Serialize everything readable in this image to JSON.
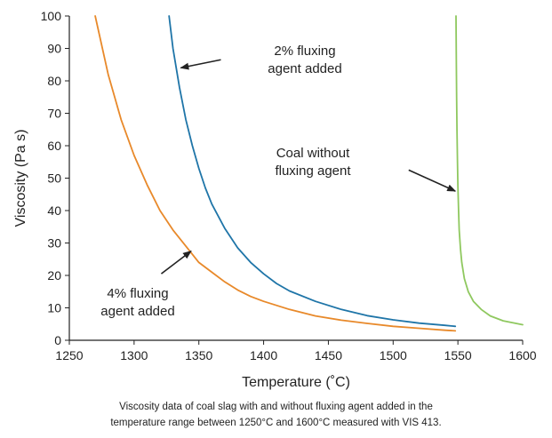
{
  "chart_data": {
    "type": "line",
    "title": "",
    "xlabel": "Temperature (˚C)",
    "ylabel": "Viscosity (Pa s)",
    "xlim": [
      1250,
      1600
    ],
    "ylim": [
      0,
      100
    ],
    "x_ticks": [
      "1250",
      "1300",
      "1350",
      "1400",
      "1450",
      "1500",
      "1550",
      "1600"
    ],
    "y_ticks": [
      "0",
      "10",
      "20",
      "30",
      "40",
      "50",
      "60",
      "70",
      "80",
      "90",
      "100"
    ],
    "grid": false,
    "legend": "none",
    "series": [
      {
        "color": "#e8892a",
        "points": [
          [
            1270,
            100
          ],
          [
            1280,
            82
          ],
          [
            1290,
            68
          ],
          [
            1300,
            57
          ],
          [
            1310,
            48
          ],
          [
            1320,
            40
          ],
          [
            1330,
            34
          ],
          [
            1340,
            29
          ],
          [
            1350,
            24
          ],
          [
            1360,
            21
          ],
          [
            1370,
            18
          ],
          [
            1380,
            15.5
          ],
          [
            1390,
            13.5
          ],
          [
            1400,
            12
          ],
          [
            1420,
            9.5
          ],
          [
            1440,
            7.5
          ],
          [
            1460,
            6.2
          ],
          [
            1480,
            5.2
          ],
          [
            1500,
            4.3
          ],
          [
            1520,
            3.7
          ],
          [
            1540,
            3.1
          ],
          [
            1548,
            2.9
          ]
        ]
      },
      {
        "color": "#1f75a8",
        "points": [
          [
            1327,
            100
          ],
          [
            1330,
            90
          ],
          [
            1335,
            78
          ],
          [
            1340,
            68
          ],
          [
            1345,
            60
          ],
          [
            1350,
            53
          ],
          [
            1355,
            47
          ],
          [
            1360,
            42
          ],
          [
            1370,
            34.5
          ],
          [
            1380,
            28.5
          ],
          [
            1390,
            24
          ],
          [
            1400,
            20.5
          ],
          [
            1410,
            17.5
          ],
          [
            1420,
            15.2
          ],
          [
            1440,
            12
          ],
          [
            1460,
            9.5
          ],
          [
            1480,
            7.6
          ],
          [
            1500,
            6.3
          ],
          [
            1520,
            5.3
          ],
          [
            1540,
            4.6
          ],
          [
            1548,
            4.3
          ]
        ]
      },
      {
        "color": "#8fc85f",
        "points": [
          [
            1548.5,
            100
          ],
          [
            1548.8,
            85
          ],
          [
            1549,
            75
          ],
          [
            1549.3,
            65
          ],
          [
            1549.6,
            56
          ],
          [
            1550,
            48
          ],
          [
            1550.5,
            40
          ],
          [
            1551,
            34
          ],
          [
            1552,
            28
          ],
          [
            1553,
            24
          ],
          [
            1555,
            19
          ],
          [
            1558,
            15
          ],
          [
            1562,
            12
          ],
          [
            1568,
            9.5
          ],
          [
            1575,
            7.5
          ],
          [
            1585,
            6
          ],
          [
            1600,
            4.8
          ]
        ]
      }
    ],
    "annotations": [
      {
        "lines": [
          "2% fluxing",
          "agent added"
        ],
        "arrow_from": [
          1367,
          86.5
        ],
        "arrow_to": [
          1336,
          84
        ]
      },
      {
        "lines": [
          "Coal without",
          "fluxing agent"
        ],
        "arrow_from": [
          1512,
          52.5
        ],
        "arrow_to": [
          1548,
          46
        ]
      },
      {
        "lines": [
          "4% fluxing",
          "agent added"
        ],
        "arrow_from": [
          1321,
          20.5
        ],
        "arrow_to": [
          1344,
          27.5
        ]
      }
    ]
  },
  "caption": {
    "line1": "Viscosity data of coal slag with and without fluxing agent added in the",
    "line2": "temperature range between 1250°C and 1600°C measured with VIS 413."
  }
}
